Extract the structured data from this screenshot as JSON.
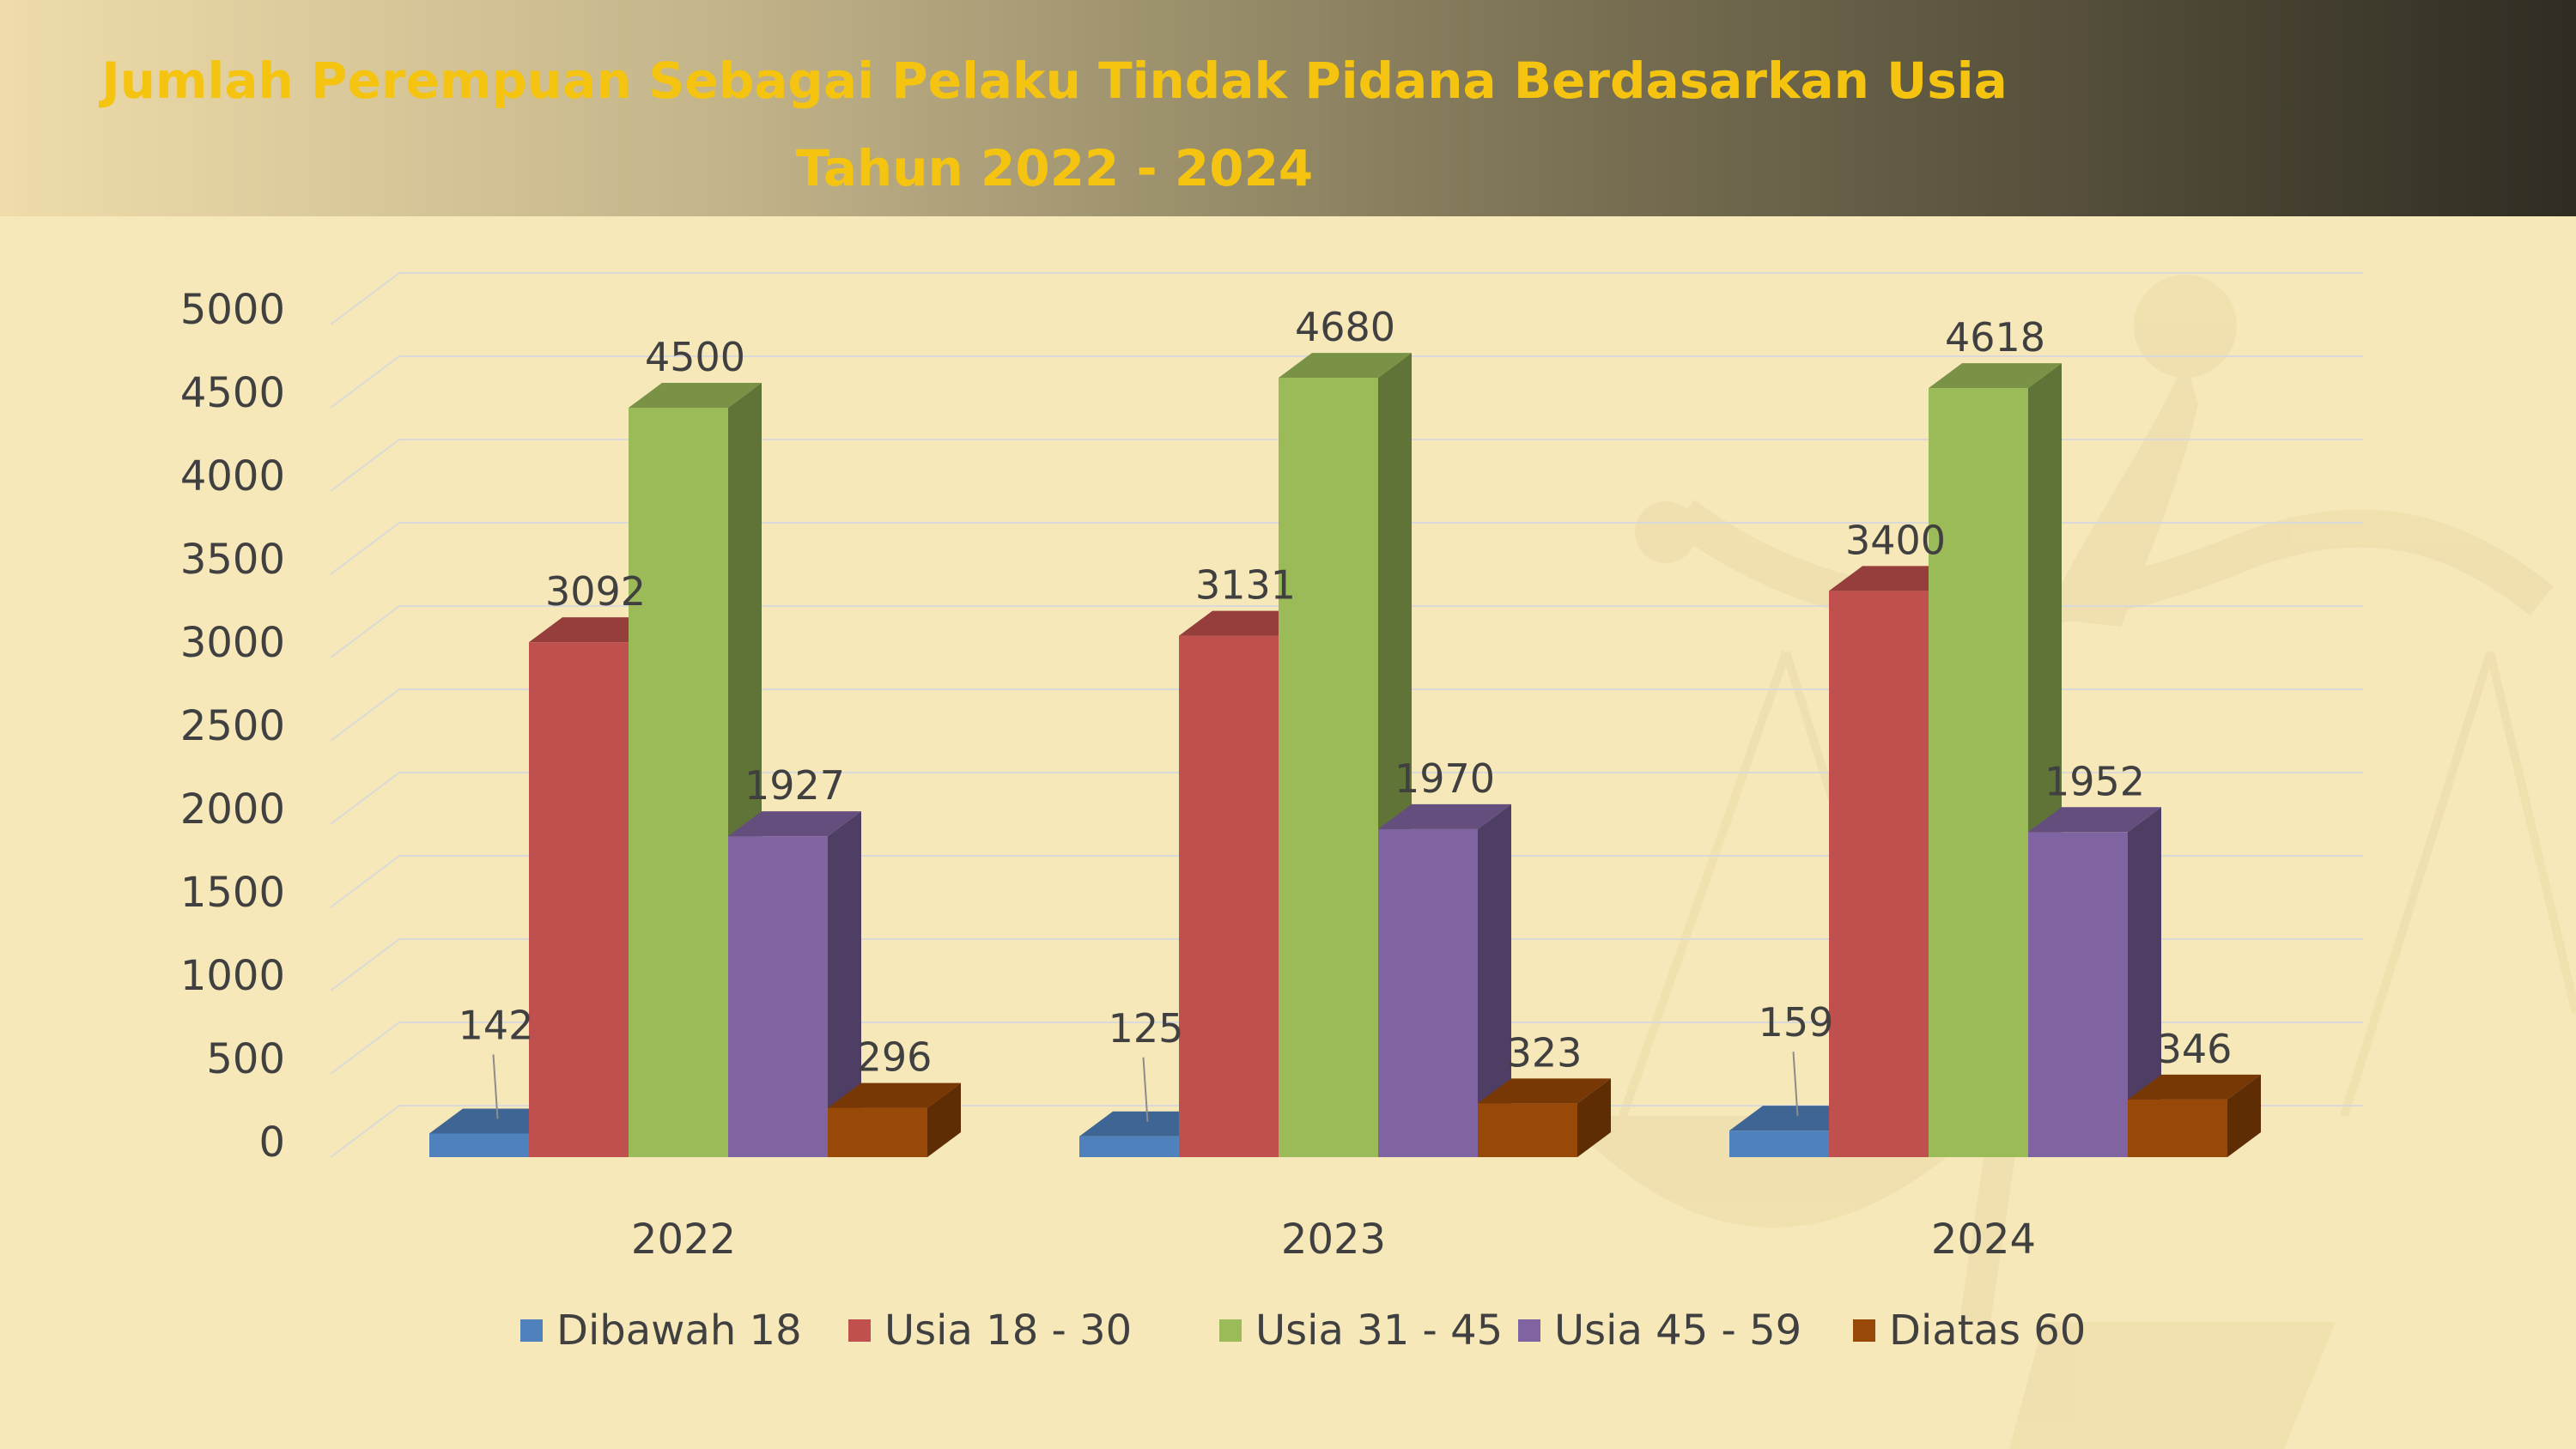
{
  "header": {
    "title_line1": "Jumlah Perempuan Sebagai Pelaku Tindak Pidana Berdasarkan Usia",
    "title_line2": "Tahun 2022 - 2024"
  },
  "colors": {
    "background": "#f7e8b9",
    "title": "#f5c410",
    "text": "#404040",
    "gridline": "#d9d9d9"
  },
  "chart_data": {
    "type": "bar",
    "style": "3d-clustered-column",
    "categories": [
      "2022",
      "2023",
      "2024"
    ],
    "series": [
      {
        "name": "Dibawah 18",
        "values": [
          142,
          125,
          159
        ],
        "color": "#4f81bd"
      },
      {
        "name": "Usia 18 - 30",
        "values": [
          3092,
          3131,
          3400
        ],
        "color": "#c0504d"
      },
      {
        "name": "Usia 31 - 45",
        "values": [
          4500,
          4680,
          4618
        ],
        "color": "#9bbb59"
      },
      {
        "name": "Usia 45 - 59",
        "values": [
          1927,
          1970,
          1952
        ],
        "color": "#8064a2"
      },
      {
        "name": "Diatas 60",
        "values": [
          296,
          323,
          346
        ],
        "color": "#984807"
      }
    ],
    "yticks": [
      "0",
      "500",
      "1000",
      "1500",
      "2000",
      "2500",
      "3000",
      "3500",
      "4000",
      "4500",
      "5000"
    ],
    "ylim": [
      0,
      5000
    ],
    "grid": true,
    "data_labels": true,
    "legend_position": "bottom"
  }
}
